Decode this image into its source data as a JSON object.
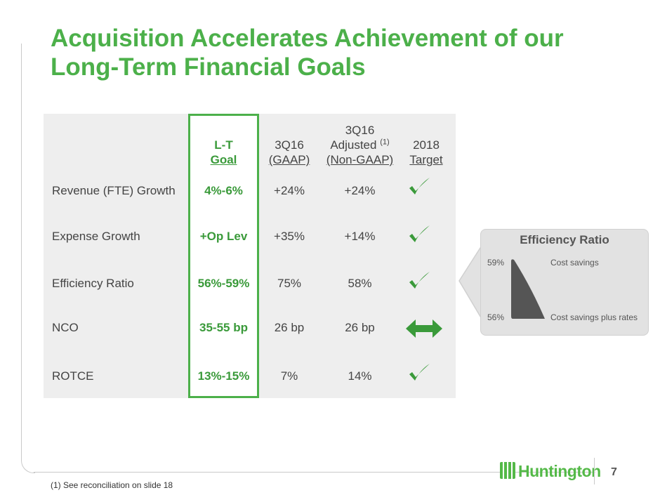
{
  "title": "Acquisition Accelerates Achievement of our Long-Term Financial Goals",
  "table": {
    "headers": {
      "goal_line1": "L-T",
      "goal_line2": "Goal",
      "gaap_line1": "3Q16",
      "gaap_line2": "(GAAP)",
      "adj_line1": "3Q16",
      "adj_line2": "Adjusted",
      "adj_note": "(1)",
      "adj_line3": "(Non-GAAP)",
      "target_line1": "2018",
      "target_line2": "Target"
    },
    "rows": [
      {
        "label": "Revenue (FTE) Growth",
        "goal": "4%-6%",
        "gaap": "+24%",
        "adjusted": "+24%",
        "target": "check-icon"
      },
      {
        "label": "Expense Growth",
        "goal": "+Op Lev",
        "gaap": "+35%",
        "adjusted": "+14%",
        "target": "check-icon"
      },
      {
        "label": "Efficiency Ratio",
        "goal": "56%-59%",
        "gaap": "75%",
        "adjusted": "58%",
        "target": "check-icon"
      },
      {
        "label": "NCO",
        "goal": "35-55 bp",
        "gaap": "26 bp",
        "adjusted": "26 bp",
        "target": "double-arrow-icon"
      },
      {
        "label": "ROTCE",
        "goal": "13%-15%",
        "gaap": "7%",
        "adjusted": "14%",
        "target": "check-icon"
      }
    ]
  },
  "callout": {
    "title": "Efficiency Ratio",
    "top_value": "59%",
    "top_label": "Cost savings",
    "bottom_value": "56%",
    "bottom_label": "Cost savings plus rates"
  },
  "footnote": "(1) See reconciliation on slide 18",
  "page_number": "7",
  "brand": "Huntington",
  "colors": {
    "accent": "#4cb04a",
    "table_bg": "#eeeeee",
    "callout_bg": "#e2e2e2"
  }
}
